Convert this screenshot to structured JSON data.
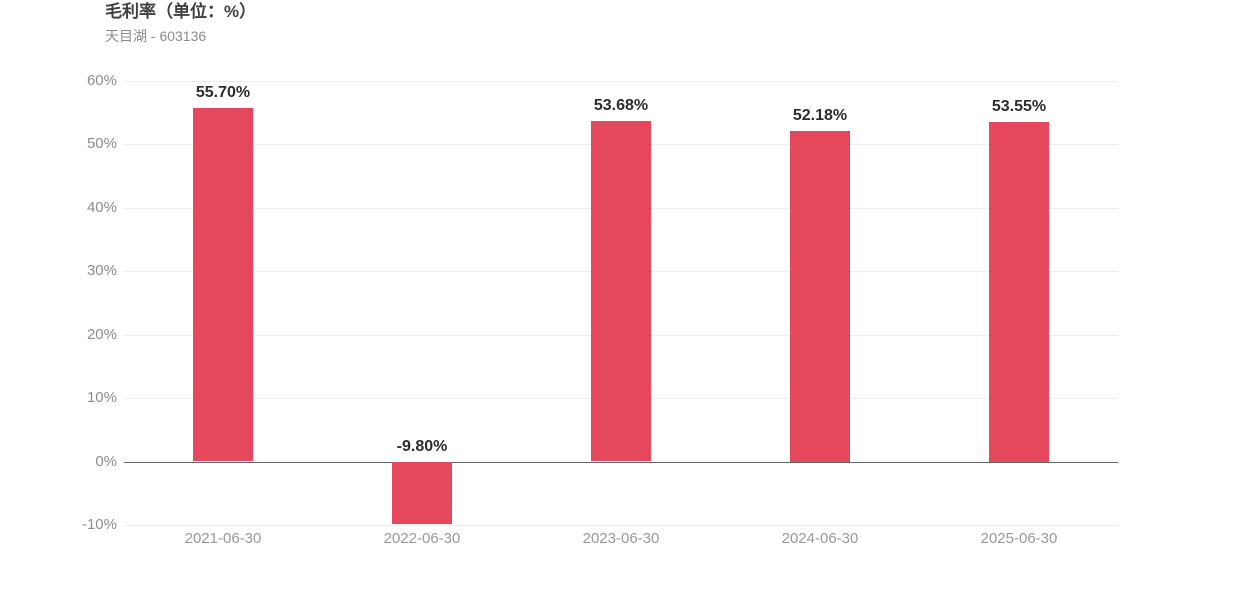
{
  "header": {
    "title": "毛利率（单位：%）",
    "subtitle": "天目湖 - 603136"
  },
  "colors": {
    "background": "#ffffff",
    "bar": "#e5485d",
    "title_text": "#404040",
    "subtitle_text": "#8c8c8c",
    "axis_label": "#8c8c8c",
    "x_axis_label": "#999999",
    "gridline": "#ececec",
    "zero_line": "#666666",
    "value_label": "#2d2d2d"
  },
  "chart_data": {
    "type": "bar",
    "title": "毛利率（单位：%）",
    "subtitle": "天目湖 - 603136",
    "categories": [
      "2021-06-30",
      "2022-06-30",
      "2023-06-30",
      "2024-06-30",
      "2025-06-30"
    ],
    "values": [
      55.7,
      -9.8,
      53.68,
      52.18,
      53.55
    ],
    "value_labels": [
      "55.70%",
      "-9.80%",
      "53.68%",
      "52.18%",
      "53.55%"
    ],
    "xlabel": "",
    "ylabel": "",
    "ylim": [
      -10,
      60
    ],
    "ytick_interval": 10,
    "ytick_labels": [
      "60%",
      "50%",
      "40%",
      "30%",
      "20%",
      "10%",
      "0%",
      "-10%"
    ],
    "grid": true,
    "legend_position": "none",
    "series_name": "毛利率"
  }
}
